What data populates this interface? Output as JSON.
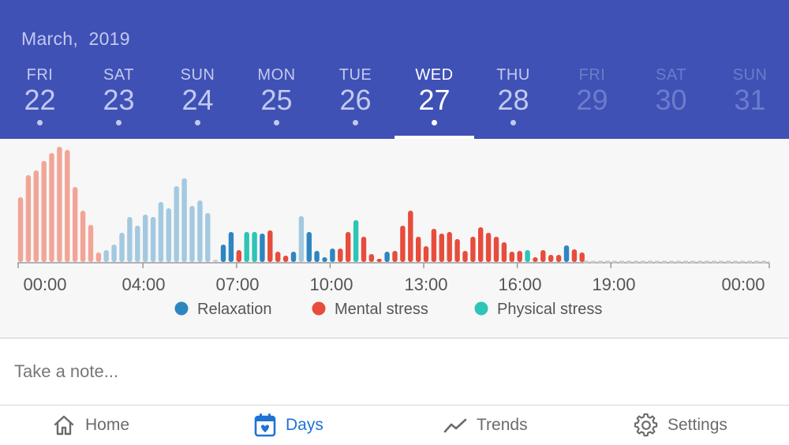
{
  "header": {
    "month": "March,  2019",
    "days": [
      {
        "dow": "FRI",
        "num": "22",
        "state": "past"
      },
      {
        "dow": "SAT",
        "num": "23",
        "state": "past"
      },
      {
        "dow": "SUN",
        "num": "24",
        "state": "past"
      },
      {
        "dow": "MON",
        "num": "25",
        "state": "past"
      },
      {
        "dow": "TUE",
        "num": "26",
        "state": "past"
      },
      {
        "dow": "WED",
        "num": "27",
        "state": "selected"
      },
      {
        "dow": "THU",
        "num": "28",
        "state": "past"
      },
      {
        "dow": "FRI",
        "num": "29",
        "state": "future"
      },
      {
        "dow": "SAT",
        "num": "30",
        "state": "future"
      },
      {
        "dow": "SUN",
        "num": "31",
        "state": "future"
      }
    ]
  },
  "chart_data": {
    "type": "bar",
    "x_tick_labels": [
      "00:00",
      "04:00",
      "07:00",
      "10:00",
      "13:00",
      "16:00",
      "19:00",
      "00:00"
    ],
    "legend": [
      {
        "name": "Relaxation",
        "color": "#2e86c1"
      },
      {
        "name": "Mental stress",
        "color": "#e74c3c"
      },
      {
        "name": "Physical stress",
        "color": "#2ec4b6"
      }
    ],
    "category_colors": {
      "sleep": "#f1a596",
      "rest": "#a3c9e0",
      "relaxation": "#2e86c1",
      "mental": "#e74c3c",
      "physical": "#2ec4b6",
      "gap": "#cfcfcf"
    },
    "x_start_hour": 0,
    "x_end_hour": 24,
    "bars": [
      {
        "t": 0.0,
        "v": 82,
        "c": "sleep"
      },
      {
        "t": 0.25,
        "v": 110,
        "c": "sleep"
      },
      {
        "t": 0.5,
        "v": 116,
        "c": "sleep"
      },
      {
        "t": 0.75,
        "v": 128,
        "c": "sleep"
      },
      {
        "t": 1.0,
        "v": 138,
        "c": "sleep"
      },
      {
        "t": 1.25,
        "v": 146,
        "c": "sleep"
      },
      {
        "t": 1.5,
        "v": 142,
        "c": "sleep"
      },
      {
        "t": 1.75,
        "v": 95,
        "c": "sleep"
      },
      {
        "t": 2.0,
        "v": 65,
        "c": "sleep"
      },
      {
        "t": 2.25,
        "v": 47,
        "c": "sleep"
      },
      {
        "t": 2.5,
        "v": 12,
        "c": "sleep"
      },
      {
        "t": 2.75,
        "v": 15,
        "c": "rest"
      },
      {
        "t": 3.0,
        "v": 22,
        "c": "rest"
      },
      {
        "t": 3.25,
        "v": 37,
        "c": "rest"
      },
      {
        "t": 3.5,
        "v": 57,
        "c": "rest"
      },
      {
        "t": 3.75,
        "v": 46,
        "c": "rest"
      },
      {
        "t": 4.0,
        "v": 60,
        "c": "rest"
      },
      {
        "t": 4.25,
        "v": 57,
        "c": "rest"
      },
      {
        "t": 4.5,
        "v": 76,
        "c": "rest"
      },
      {
        "t": 4.75,
        "v": 68,
        "c": "rest"
      },
      {
        "t": 5.0,
        "v": 96,
        "c": "rest"
      },
      {
        "t": 5.25,
        "v": 106,
        "c": "rest"
      },
      {
        "t": 5.5,
        "v": 71,
        "c": "rest"
      },
      {
        "t": 5.75,
        "v": 78,
        "c": "rest"
      },
      {
        "t": 6.0,
        "v": 62,
        "c": "rest"
      },
      {
        "t": 6.25,
        "v": 3,
        "c": "gap"
      },
      {
        "t": 6.5,
        "v": 22,
        "c": "relaxation"
      },
      {
        "t": 6.75,
        "v": 38,
        "c": "relaxation"
      },
      {
        "t": 7.0,
        "v": 15,
        "c": "mental"
      },
      {
        "t": 7.25,
        "v": 38,
        "c": "physical"
      },
      {
        "t": 7.5,
        "v": 38,
        "c": "physical"
      },
      {
        "t": 7.75,
        "v": 36,
        "c": "relaxation"
      },
      {
        "t": 8.0,
        "v": 40,
        "c": "mental"
      },
      {
        "t": 8.25,
        "v": 13,
        "c": "mental"
      },
      {
        "t": 8.5,
        "v": 8,
        "c": "mental"
      },
      {
        "t": 8.75,
        "v": 13,
        "c": "relaxation"
      },
      {
        "t": 9.0,
        "v": 58,
        "c": "rest"
      },
      {
        "t": 9.25,
        "v": 38,
        "c": "relaxation"
      },
      {
        "t": 9.5,
        "v": 14,
        "c": "relaxation"
      },
      {
        "t": 9.75,
        "v": 6,
        "c": "relaxation"
      },
      {
        "t": 10.0,
        "v": 17,
        "c": "relaxation"
      },
      {
        "t": 10.25,
        "v": 17,
        "c": "mental"
      },
      {
        "t": 10.5,
        "v": 38,
        "c": "mental"
      },
      {
        "t": 10.75,
        "v": 53,
        "c": "physical"
      },
      {
        "t": 11.0,
        "v": 32,
        "c": "mental"
      },
      {
        "t": 11.25,
        "v": 10,
        "c": "mental"
      },
      {
        "t": 11.5,
        "v": 4,
        "c": "mental"
      },
      {
        "t": 11.75,
        "v": 13,
        "c": "relaxation"
      },
      {
        "t": 12.0,
        "v": 14,
        "c": "mental"
      },
      {
        "t": 12.25,
        "v": 46,
        "c": "mental"
      },
      {
        "t": 12.5,
        "v": 65,
        "c": "mental"
      },
      {
        "t": 12.75,
        "v": 32,
        "c": "mental"
      },
      {
        "t": 13.0,
        "v": 20,
        "c": "mental"
      },
      {
        "t": 13.25,
        "v": 42,
        "c": "mental"
      },
      {
        "t": 13.5,
        "v": 36,
        "c": "mental"
      },
      {
        "t": 13.75,
        "v": 38,
        "c": "mental"
      },
      {
        "t": 14.0,
        "v": 29,
        "c": "mental"
      },
      {
        "t": 14.25,
        "v": 14,
        "c": "mental"
      },
      {
        "t": 14.5,
        "v": 32,
        "c": "mental"
      },
      {
        "t": 14.75,
        "v": 44,
        "c": "mental"
      },
      {
        "t": 15.0,
        "v": 37,
        "c": "mental"
      },
      {
        "t": 15.25,
        "v": 32,
        "c": "mental"
      },
      {
        "t": 15.5,
        "v": 25,
        "c": "mental"
      },
      {
        "t": 15.75,
        "v": 13,
        "c": "mental"
      },
      {
        "t": 16.0,
        "v": 14,
        "c": "mental"
      },
      {
        "t": 16.25,
        "v": 15,
        "c": "physical"
      },
      {
        "t": 16.5,
        "v": 6,
        "c": "mental"
      },
      {
        "t": 16.75,
        "v": 15,
        "c": "mental"
      },
      {
        "t": 17.0,
        "v": 9,
        "c": "mental"
      },
      {
        "t": 17.25,
        "v": 9,
        "c": "mental"
      },
      {
        "t": 17.5,
        "v": 21,
        "c": "relaxation"
      },
      {
        "t": 17.75,
        "v": 16,
        "c": "mental"
      },
      {
        "t": 18.0,
        "v": 12,
        "c": "mental"
      }
    ]
  },
  "note": {
    "placeholder": "Take a note..."
  },
  "tabs": [
    {
      "label": "Home",
      "icon": "home-icon",
      "active": false
    },
    {
      "label": "Days",
      "icon": "calendar-heart-icon",
      "active": true
    },
    {
      "label": "Trends",
      "icon": "trend-line-icon",
      "active": false
    },
    {
      "label": "Settings",
      "icon": "gear-icon",
      "active": false
    }
  ]
}
